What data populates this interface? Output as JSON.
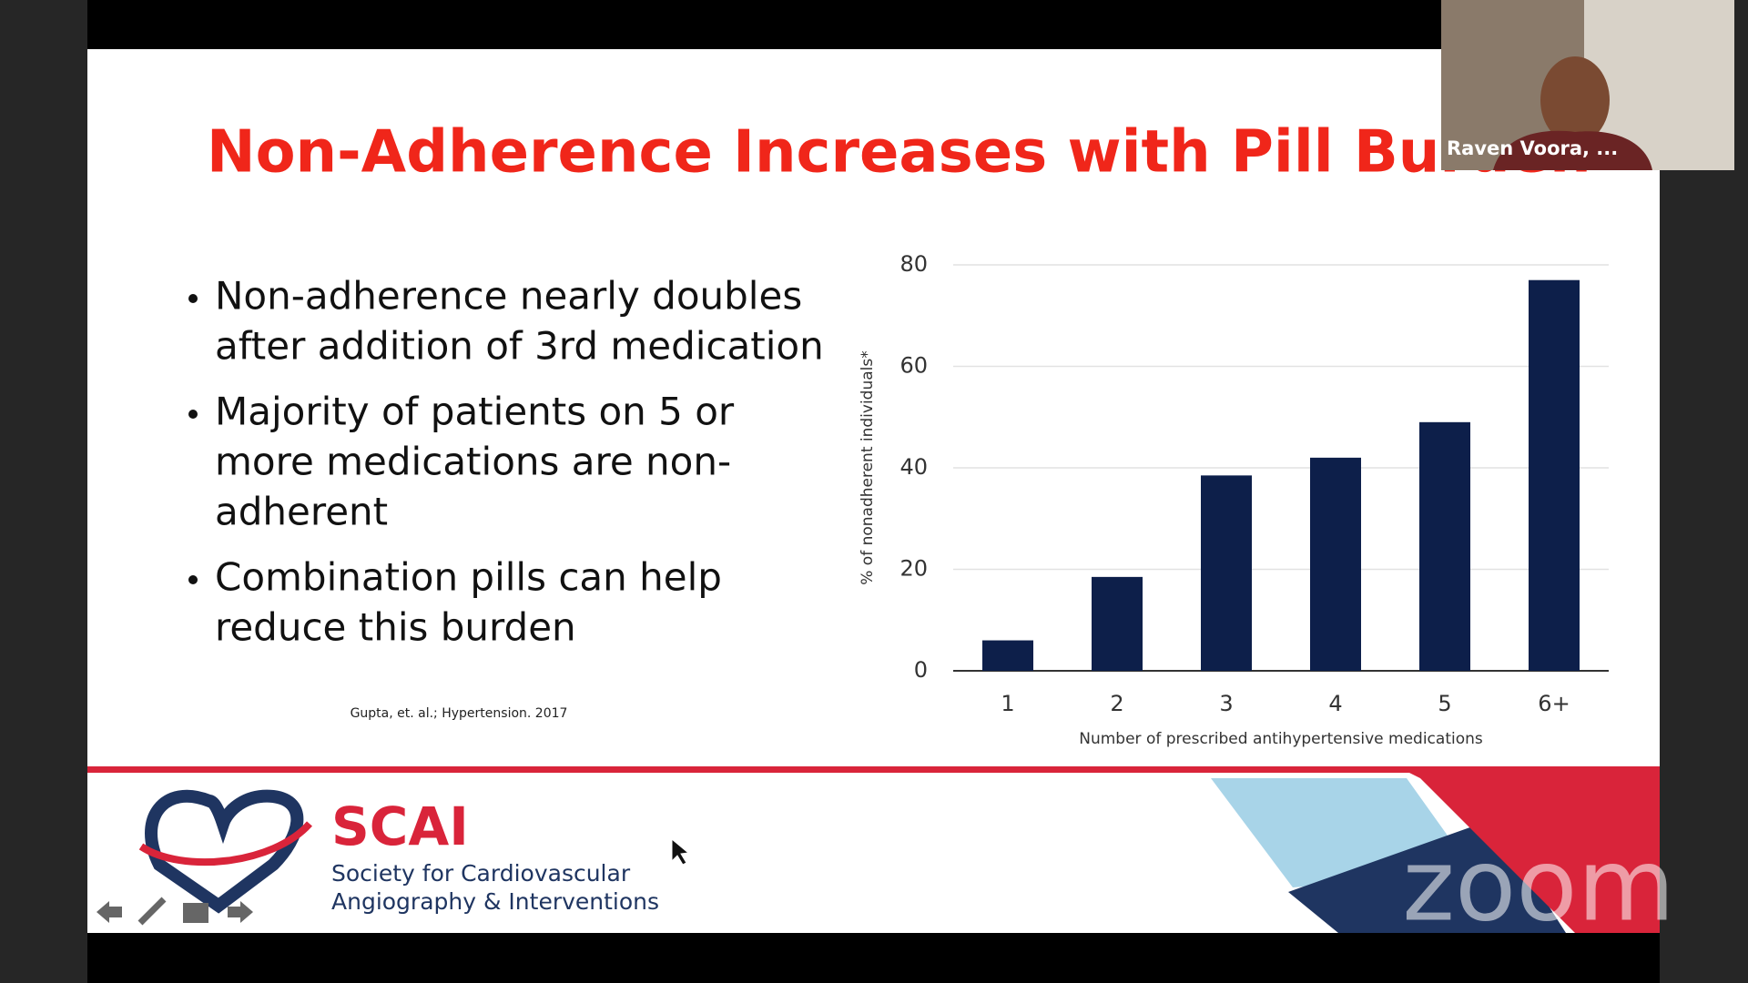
{
  "slide": {
    "title": "Non-Adherence Increases with Pill Burden",
    "bullets": [
      [
        "Non-adherence nearly doubles",
        "after addition of 3rd medication"
      ],
      [
        "Majority of patients on 5 or",
        "more medications are non-",
        "adherent"
      ],
      [
        "Combination pills can help",
        "reduce this burden"
      ]
    ],
    "citation": "Gupta, et. al.; Hypertension. 2017",
    "logo": {
      "name": "SCAI",
      "line1": "Society for Cardiovascular",
      "line2": "Angiography & Interventions"
    }
  },
  "webcam": {
    "name": "Raven Voora, ..."
  },
  "watermark": "zoom",
  "chart_data": {
    "type": "bar",
    "categories": [
      "1",
      "2",
      "3",
      "4",
      "5",
      "6+"
    ],
    "values": [
      6,
      18.5,
      38.5,
      42,
      49,
      77
    ],
    "color": "#0d1f4a",
    "ylim": [
      0,
      80
    ],
    "yticks": [
      0,
      20,
      40,
      60,
      80
    ],
    "grid": true,
    "xlabel": "Number of prescribed antihypertensive medications",
    "ylabel": "% of nonadherent individuals*"
  }
}
